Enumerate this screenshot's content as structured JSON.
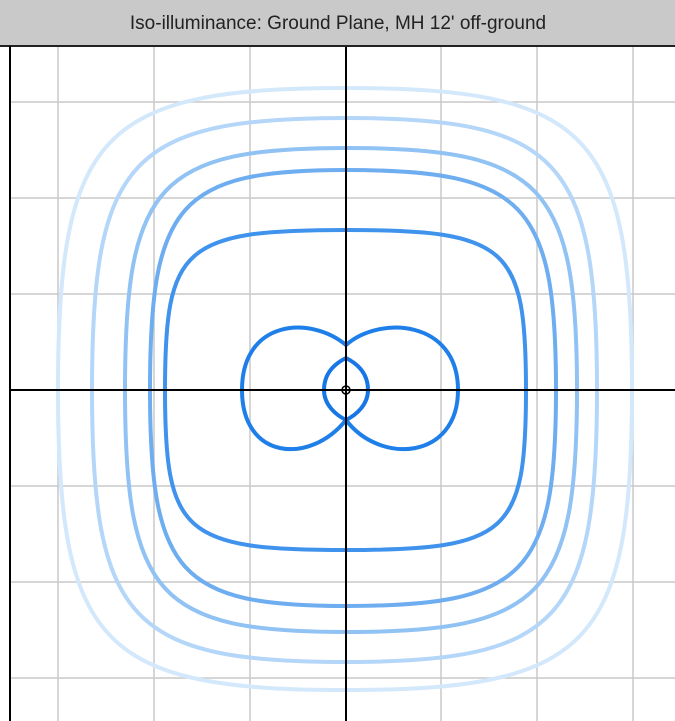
{
  "header": {
    "title": "Iso-illuminance: Ground Plane, MH 12' off-ground"
  }
}
